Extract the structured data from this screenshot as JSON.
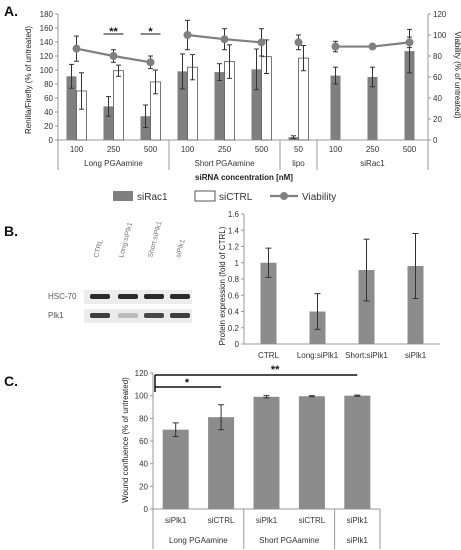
{
  "figure": {
    "panels": {
      "a": "A.",
      "b": "B.",
      "c": "C."
    }
  },
  "chart_data": [
    {
      "type": "bar",
      "panel": "A.",
      "ylabel": "Renilla/Firefly (% of untreated)",
      "y2label": "Viability (% of untreated)",
      "xlabel": "siRNA concentration [nM]",
      "ylim": [
        0,
        180
      ],
      "y2lim": [
        0,
        120
      ],
      "yticks": [
        "0",
        "20",
        "40",
        "60",
        "80",
        "100",
        "120",
        "140",
        "160",
        "180"
      ],
      "y2ticks": [
        "0",
        "20",
        "40",
        "60",
        "80",
        "100",
        "120"
      ],
      "categories": [
        "100",
        "250",
        "500",
        "100",
        "250",
        "500",
        "50",
        "100",
        "250",
        "500"
      ],
      "groups": [
        {
          "label": "Long PGAamine",
          "span": [
            0,
            2
          ]
        },
        {
          "label": "Short PGAamine",
          "span": [
            3,
            5
          ]
        },
        {
          "label": "lipo",
          "span": [
            6,
            6
          ]
        },
        {
          "label": "siRac1",
          "span": [
            7,
            9
          ]
        }
      ],
      "series": [
        {
          "name": "siRac1",
          "kind": "bar",
          "color": "#7f7f7f",
          "values": [
            91,
            48,
            34,
            98,
            97,
            101,
            4,
            92,
            90,
            127
          ],
          "errors": [
            17,
            14,
            16,
            25,
            12,
            29,
            2,
            12,
            14,
            31
          ]
        },
        {
          "name": "siCTRL",
          "kind": "bar",
          "color": "#ffffff",
          "values": [
            70,
            99,
            83,
            104,
            112,
            119,
            117,
            null,
            null,
            null
          ],
          "errors": [
            26,
            8,
            17,
            18,
            24,
            24,
            18,
            null,
            null,
            null
          ]
        },
        {
          "name": "Viability",
          "kind": "line",
          "axis": "right",
          "color": "#808080",
          "values": [
            87,
            80,
            74,
            100,
            96,
            93,
            93,
            89,
            89,
            93
          ],
          "errors": [
            12,
            6,
            6,
            14,
            10,
            13,
            7,
            5,
            null,
            5
          ]
        }
      ],
      "significance": [
        {
          "label": "**",
          "category_index": 1
        },
        {
          "label": "*",
          "category_index": 2
        }
      ],
      "grid": false,
      "legend": "bottom"
    },
    {
      "type": "bar",
      "panel": "B.",
      "ylabel": "Protein expression (fold of CTRL)",
      "ylim": [
        0,
        1.6
      ],
      "yticks": [
        "0",
        "0.2",
        "0.4",
        "0.6",
        "0.8",
        "1",
        "1.2",
        "1.4",
        "1.6"
      ],
      "categories": [
        "CTRL",
        "Long:siPlk1",
        "Short:siPlk1",
        "siPlk1"
      ],
      "values": [
        1.0,
        0.4,
        0.91,
        0.96
      ],
      "errors": [
        0.18,
        0.22,
        0.38,
        0.4
      ],
      "color": "#8c8c8c",
      "grid": false
    },
    {
      "type": "bar",
      "panel": "C.",
      "ylabel": "Wound confluence (% of untreated)",
      "ylim": [
        0,
        120
      ],
      "yticks": [
        "0",
        "20",
        "40",
        "60",
        "80",
        "100",
        "120"
      ],
      "categories": [
        "siPlk1",
        "siCTRL",
        "siPlk1",
        "siCTRL",
        "siPlk1"
      ],
      "groups": [
        {
          "label": "Long PGAamine",
          "span": [
            0,
            1
          ]
        },
        {
          "label": "Short PGAamine",
          "span": [
            2,
            3
          ]
        },
        {
          "label": "siPlk1",
          "span": [
            4,
            4
          ]
        }
      ],
      "values": [
        70,
        81,
        99,
        99.5,
        100
      ],
      "errors": [
        6,
        11,
        1,
        0.5,
        0.5
      ],
      "color": "#8c8c8c",
      "significance": [
        {
          "label": "*",
          "from": 0,
          "to": 1
        },
        {
          "label": "**",
          "from": 0,
          "to": 4
        }
      ],
      "grid": false
    }
  ],
  "blot": {
    "lanes": [
      "CTRL",
      "Long:siPlk1",
      "Short:siPlk1",
      "siPlk1"
    ],
    "rows": [
      "HSC-70",
      "Plk1"
    ]
  }
}
